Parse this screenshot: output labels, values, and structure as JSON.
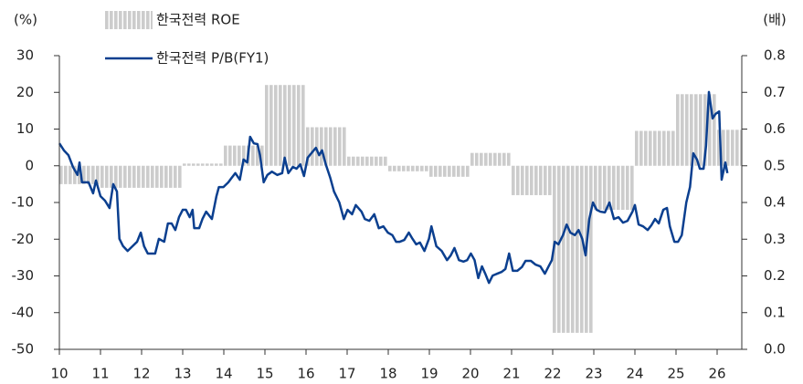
{
  "chart_data": {
    "type": "bar",
    "ylabel": "(%)",
    "y2label": "(배)",
    "xlim": [
      10,
      26.6
    ],
    "xticks": [
      10,
      11,
      12,
      13,
      14,
      15,
      16,
      17,
      18,
      19,
      20,
      21,
      22,
      23,
      24,
      25,
      26
    ],
    "ylim": [
      -50,
      30
    ],
    "yticks": [
      30,
      20,
      10,
      0,
      -10,
      -20,
      -30,
      -40,
      -50
    ],
    "y2lim": [
      0,
      0.8
    ],
    "y2ticks": [
      0.8,
      0.7,
      0.6,
      0.5,
      0.4,
      0.3,
      0.2,
      0.1,
      {
        "value": 0,
        "label": "0.0"
      }
    ],
    "legend": "upper left",
    "series": [
      {
        "name": "한국전력 ROE",
        "type": "bar",
        "color": "#cccccc",
        "x": [
          10,
          11,
          12,
          13,
          14,
          15,
          16,
          17,
          18,
          19,
          20,
          21,
          22,
          23,
          24,
          25,
          26
        ],
        "values": [
          -5,
          -6,
          -6,
          0.6,
          5.5,
          22,
          10.5,
          2.5,
          -1.5,
          -3,
          3.5,
          -8,
          -45.5,
          -12,
          9.5,
          19.5,
          9.8
        ]
      },
      {
        "name": "한국전력 P/B(FY1)",
        "type": "line",
        "axis": "y2",
        "color": "#0b3f8f",
        "x": [
          10.0,
          10.11,
          10.22,
          10.33,
          10.44,
          10.49,
          10.55,
          10.71,
          10.82,
          10.89,
          11.0,
          11.11,
          11.22,
          11.31,
          11.4,
          11.46,
          11.55,
          11.66,
          11.78,
          11.89,
          11.98,
          12.06,
          12.15,
          12.33,
          12.42,
          12.55,
          12.64,
          12.73,
          12.82,
          12.91,
          13.0,
          13.08,
          13.17,
          13.24,
          13.28,
          13.4,
          13.48,
          13.57,
          13.71,
          13.82,
          13.88,
          13.99,
          14.11,
          14.19,
          14.28,
          14.39,
          14.48,
          14.57,
          14.64,
          14.73,
          14.82,
          14.88,
          14.97,
          15.06,
          15.17,
          15.3,
          15.42,
          15.48,
          15.57,
          15.68,
          15.77,
          15.86,
          15.95,
          16.04,
          16.15,
          16.24,
          16.32,
          16.39,
          16.48,
          16.59,
          16.68,
          16.81,
          16.92,
          17.01,
          17.12,
          17.21,
          17.35,
          17.43,
          17.54,
          17.66,
          17.77,
          17.88,
          17.99,
          18.1,
          18.19,
          18.28,
          18.39,
          18.5,
          18.59,
          18.68,
          18.77,
          18.88,
          18.99,
          19.05,
          19.17,
          19.3,
          19.43,
          19.52,
          19.61,
          19.72,
          19.83,
          19.92,
          20.01,
          20.1,
          20.19,
          20.28,
          20.36,
          20.45,
          20.54,
          20.65,
          20.76,
          20.85,
          20.94,
          21.03,
          21.14,
          21.25,
          21.34,
          21.47,
          21.58,
          21.7,
          21.81,
          21.9,
          21.98,
          22.05,
          22.14,
          22.25,
          22.34,
          22.43,
          22.54,
          22.63,
          22.72,
          22.8,
          22.89,
          22.98,
          23.07,
          23.16,
          23.27,
          23.38,
          23.49,
          23.6,
          23.71,
          23.82,
          23.94,
          24.0,
          24.09,
          24.2,
          24.31,
          24.4,
          24.49,
          24.58,
          24.69,
          24.78,
          24.85,
          24.96,
          25.05,
          25.14,
          25.25,
          25.34,
          25.42,
          25.51,
          25.58,
          25.67,
          25.73,
          25.8,
          25.89,
          25.96,
          26.05,
          26.11,
          26.2,
          26.25
        ],
        "values": [
          0.561,
          0.542,
          0.529,
          0.497,
          0.475,
          0.509,
          0.455,
          0.455,
          0.425,
          0.46,
          0.417,
          0.405,
          0.385,
          0.45,
          0.43,
          0.301,
          0.281,
          0.268,
          0.281,
          0.293,
          0.318,
          0.281,
          0.261,
          0.261,
          0.301,
          0.293,
          0.343,
          0.343,
          0.325,
          0.36,
          0.38,
          0.38,
          0.36,
          0.38,
          0.33,
          0.33,
          0.355,
          0.375,
          0.355,
          0.417,
          0.442,
          0.442,
          0.455,
          0.467,
          0.48,
          0.462,
          0.517,
          0.509,
          0.579,
          0.561,
          0.559,
          0.529,
          0.455,
          0.475,
          0.484,
          0.475,
          0.48,
          0.522,
          0.48,
          0.497,
          0.492,
          0.504,
          0.472,
          0.522,
          0.537,
          0.549,
          0.529,
          0.542,
          0.504,
          0.467,
          0.43,
          0.4,
          0.355,
          0.38,
          0.368,
          0.393,
          0.375,
          0.355,
          0.35,
          0.368,
          0.33,
          0.335,
          0.318,
          0.311,
          0.293,
          0.293,
          0.298,
          0.318,
          0.301,
          0.286,
          0.291,
          0.268,
          0.301,
          0.335,
          0.281,
          0.268,
          0.243,
          0.256,
          0.276,
          0.243,
          0.239,
          0.243,
          0.261,
          0.243,
          0.194,
          0.226,
          0.206,
          0.181,
          0.201,
          0.206,
          0.211,
          0.219,
          0.261,
          0.214,
          0.214,
          0.224,
          0.241,
          0.241,
          0.231,
          0.226,
          0.206,
          0.226,
          0.243,
          0.293,
          0.286,
          0.311,
          0.34,
          0.318,
          0.311,
          0.325,
          0.301,
          0.256,
          0.355,
          0.4,
          0.38,
          0.375,
          0.373,
          0.4,
          0.355,
          0.36,
          0.345,
          0.35,
          0.375,
          0.393,
          0.34,
          0.335,
          0.325,
          0.338,
          0.355,
          0.343,
          0.38,
          0.385,
          0.335,
          0.293,
          0.293,
          0.311,
          0.4,
          0.442,
          0.534,
          0.517,
          0.492,
          0.492,
          0.554,
          0.701,
          0.629,
          0.641,
          0.648,
          0.462,
          0.509,
          0.48
        ]
      }
    ]
  }
}
